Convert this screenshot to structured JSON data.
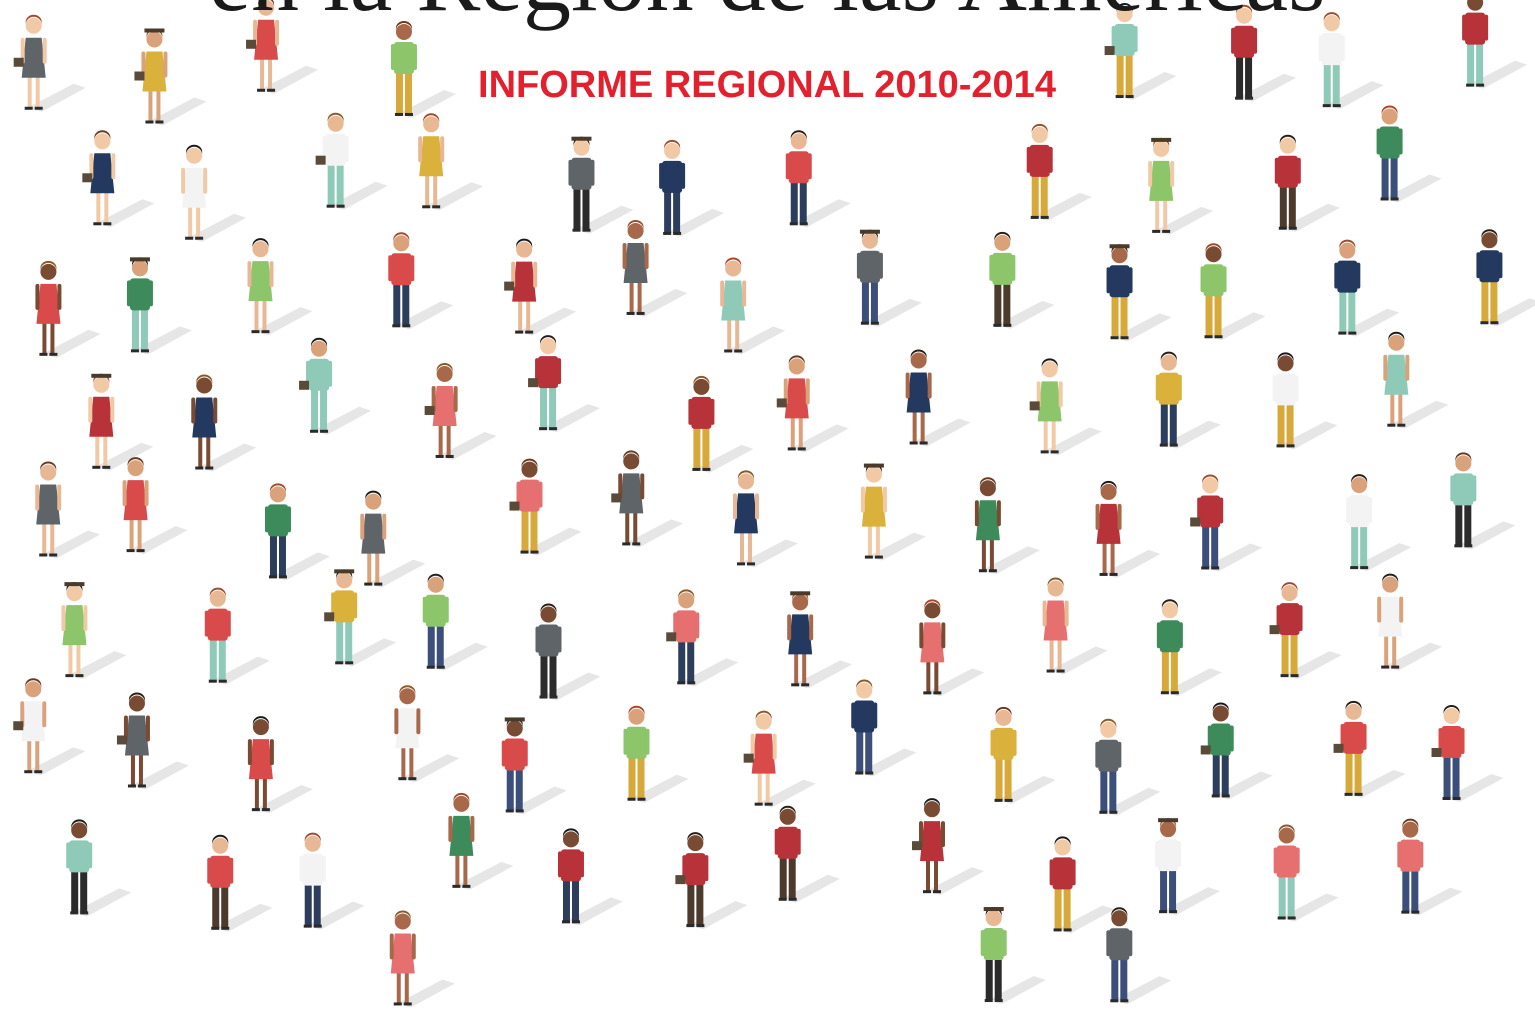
{
  "header": {
    "title": "en la Región de las Américas",
    "subtitle": "INFORME REGIONAL 2010-2014"
  }
}
